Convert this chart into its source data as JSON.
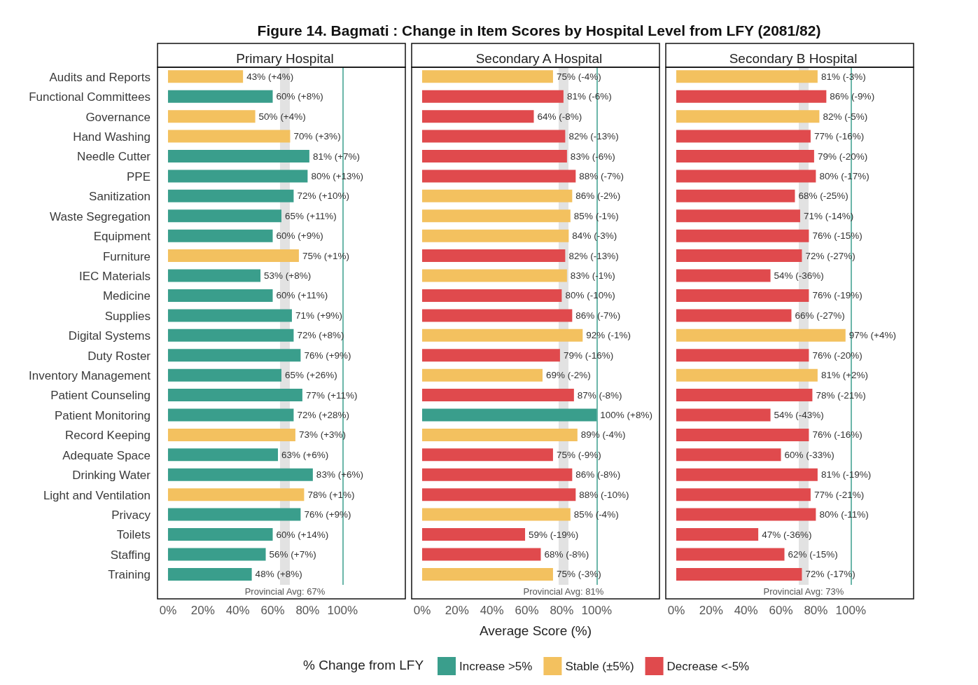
{
  "chart_data": [
    {
      "type": "bar",
      "orientation": "horizontal",
      "stacked": true,
      "title": "Figure 14. Bagmati : Change in Item Scores by Hospital Level from LFY (2081/82)",
      "subtitle": "Primary Hospital",
      "categories": [
        "Audits and Reports",
        "Functional Committees",
        "Governance",
        "Hand Washing",
        "Needle Cutter",
        "PPE",
        "Sanitization",
        "Waste Segregation",
        "Equipment",
        "Furniture",
        "IEC Materials",
        "Medicine",
        "Supplies",
        "Digital Systems",
        "Duty Roster",
        "Inventory Management",
        "Patient Counseling",
        "Patient Monitoring",
        "Record Keeping",
        "Adequate Space",
        "Drinking Water",
        "Light and Ventilation",
        "Privacy",
        "Toilets",
        "Staffing",
        "Training"
      ],
      "series": [
        {
          "color": "#3a9e8c",
          "values": [
            null,
            60,
            null,
            null,
            81,
            80,
            72,
            65,
            60,
            null,
            53,
            60,
            71,
            72,
            76,
            65,
            77,
            72,
            null,
            63,
            83,
            null,
            76,
            60,
            56,
            48
          ],
          "value_labels": [
            null,
            "60% (+8%)",
            null,
            null,
            "81% (+7%)",
            "80% (+13%)",
            "72% (+10%)",
            "65% (+11%)",
            "60% (+9%)",
            null,
            "53% (+8%)",
            "60% (+11%)",
            "71% (+9%)",
            "72% (+8%)",
            "76% (+9%)",
            "65% (+26%)",
            "77% (+11%)",
            "72% (+28%)",
            null,
            "63% (+6%)",
            "83% (+6%)",
            null,
            "76% (+9%)",
            "60% (+14%)",
            "56% (+7%)",
            "48% (+8%)"
          ]
        },
        {
          "color": "#f3c15f",
          "values": [
            43,
            null,
            50,
            70,
            null,
            null,
            null,
            null,
            null,
            75,
            null,
            null,
            null,
            null,
            null,
            null,
            null,
            null,
            73,
            null,
            null,
            78,
            null,
            null,
            null,
            null
          ],
          "value_labels": [
            "43% (+4%)",
            null,
            "50% (+4%)",
            "70% (+3%)",
            null,
            null,
            null,
            null,
            null,
            "75% (+1%)",
            null,
            null,
            null,
            null,
            null,
            null,
            null,
            null,
            "73% (+3%)",
            null,
            null,
            "78% (+1%)",
            null,
            null,
            null,
            null
          ]
        }
      ],
      "xlim": [
        -6,
        136
      ],
      "xticks": [
        {
          "value": 0,
          "label": "0%"
        },
        {
          "value": 20,
          "label": "20%"
        },
        {
          "value": 40,
          "label": "40%"
        },
        {
          "value": 60,
          "label": "60%"
        },
        {
          "value": 80,
          "label": "80%"
        },
        {
          "value": 100,
          "label": "100%"
        }
      ],
      "ref_lines": [
        {
          "axis": "x",
          "value": 67,
          "label": "Provincial Avg: 67%",
          "color": "#e2e2e2"
        },
        {
          "axis": "x",
          "value": 100,
          "color": "#3a9e8c"
        }
      ],
      "legend": false
    },
    {
      "type": "bar",
      "orientation": "horizontal",
      "stacked": true,
      "subtitle": "Secondary A Hospital",
      "xlabel": "Average Score (%)",
      "tick_labels": "x",
      "categories": [
        null,
        null,
        null,
        null,
        null,
        null,
        null,
        null,
        null,
        null,
        null,
        null,
        null,
        null,
        null,
        null,
        null,
        null,
        null,
        null,
        null,
        null,
        null,
        null,
        null,
        null
      ],
      "series": [
        {
          "color": "#3a9e8c",
          "values": [
            null,
            null,
            null,
            null,
            null,
            null,
            null,
            null,
            null,
            null,
            null,
            null,
            null,
            null,
            null,
            null,
            null,
            100,
            null,
            null,
            null,
            null,
            null,
            null,
            null,
            null
          ],
          "value_labels": [
            null,
            null,
            null,
            null,
            null,
            null,
            null,
            null,
            null,
            null,
            null,
            null,
            null,
            null,
            null,
            null,
            null,
            "100% (+8%)",
            null,
            null,
            null,
            null,
            null,
            null,
            null,
            null
          ]
        },
        {
          "color": "#f3c15f",
          "values": [
            75,
            null,
            null,
            null,
            null,
            null,
            86,
            85,
            84,
            null,
            83,
            null,
            null,
            92,
            null,
            69,
            null,
            null,
            89,
            null,
            null,
            null,
            85,
            null,
            null,
            75
          ],
          "value_labels": [
            "75% (-4%)",
            null,
            null,
            null,
            null,
            null,
            "86% (-2%)",
            "85% (-1%)",
            "84% (-3%)",
            null,
            "83% (-1%)",
            null,
            null,
            "92% (-1%)",
            null,
            "69% (-2%)",
            null,
            null,
            "89% (-4%)",
            null,
            null,
            null,
            "85% (-4%)",
            null,
            null,
            "75% (-3%)"
          ]
        },
        {
          "color": "#e04a4d",
          "values": [
            null,
            81,
            64,
            82,
            83,
            88,
            null,
            null,
            null,
            82,
            null,
            80,
            86,
            null,
            79,
            null,
            87,
            null,
            null,
            75,
            86,
            88,
            null,
            59,
            68,
            null
          ],
          "value_labels": [
            null,
            "81% (-6%)",
            "64% (-8%)",
            "82% (-13%)",
            "83% (-6%)",
            "88% (-7%)",
            null,
            null,
            null,
            "82% (-13%)",
            null,
            "80% (-10%)",
            "86% (-7%)",
            null,
            "79% (-16%)",
            null,
            "87% (-8%)",
            null,
            null,
            "75% (-9%)",
            "86% (-8%)",
            "88% (-10%)",
            null,
            "59% (-19%)",
            "68% (-8%)",
            null
          ]
        }
      ],
      "xlim": [
        -6,
        136
      ],
      "xticks": [
        {
          "value": 0,
          "label": "0%"
        },
        {
          "value": 20,
          "label": "20%"
        },
        {
          "value": 40,
          "label": "40%"
        },
        {
          "value": 60,
          "label": "60%"
        },
        {
          "value": 80,
          "label": "80%"
        },
        {
          "value": 100,
          "label": "100%"
        }
      ],
      "ref_lines": [
        {
          "axis": "x",
          "value": 81,
          "label": "Provincial Avg: 81%",
          "color": "#e2e2e2"
        },
        {
          "axis": "x",
          "value": 100,
          "color": "#3a9e8c"
        }
      ],
      "legend": false
    },
    {
      "type": "bar",
      "orientation": "horizontal",
      "stacked": true,
      "subtitle": "Secondary B Hospital",
      "tick_labels": "x",
      "legend_title": "% Change from LFY",
      "categories": [
        null,
        null,
        null,
        null,
        null,
        null,
        null,
        null,
        null,
        null,
        null,
        null,
        null,
        null,
        null,
        null,
        null,
        null,
        null,
        null,
        null,
        null,
        null,
        null,
        null,
        null
      ],
      "series": [
        {
          "name": "Increase >5%",
          "color": "#3a9e8c",
          "values": [
            null,
            null,
            null,
            null,
            null,
            null,
            null,
            null,
            null,
            null,
            null,
            null,
            null,
            null,
            null,
            null,
            null,
            null,
            null,
            null,
            null,
            null,
            null,
            null,
            null,
            null
          ]
        },
        {
          "name": "Stable (±5%)",
          "color": "#f3c15f",
          "values": [
            81,
            null,
            82,
            null,
            null,
            null,
            null,
            null,
            null,
            null,
            null,
            null,
            null,
            97,
            null,
            81,
            null,
            null,
            null,
            null,
            null,
            null,
            null,
            null,
            null,
            null
          ],
          "value_labels": [
            "81% (-3%)",
            null,
            "82% (-5%)",
            null,
            null,
            null,
            null,
            null,
            null,
            null,
            null,
            null,
            null,
            "97% (+4%)",
            null,
            "81% (+2%)",
            null,
            null,
            null,
            null,
            null,
            null,
            null,
            null,
            null,
            null
          ]
        },
        {
          "name": "Decrease <-5%",
          "color": "#e04a4d",
          "values": [
            null,
            86,
            null,
            77,
            79,
            80,
            68,
            71,
            76,
            72,
            54,
            76,
            66,
            null,
            76,
            null,
            78,
            54,
            76,
            60,
            81,
            77,
            80,
            47,
            62,
            72
          ],
          "value_labels": [
            null,
            "86% (-9%)",
            null,
            "77% (-16%)",
            "79% (-20%)",
            "80% (-17%)",
            "68% (-25%)",
            "71% (-14%)",
            "76% (-15%)",
            "72% (-27%)",
            "54% (-36%)",
            "76% (-19%)",
            "66% (-27%)",
            null,
            "76% (-20%)",
            null,
            "78% (-21%)",
            "54% (-43%)",
            "76% (-16%)",
            "60% (-33%)",
            "81% (-19%)",
            "77% (-21%)",
            "80% (-11%)",
            "47% (-36%)",
            "62% (-15%)",
            "72% (-17%)"
          ]
        }
      ],
      "xlim": [
        -6,
        136
      ],
      "xticks": [
        {
          "value": 0,
          "label": "0%"
        },
        {
          "value": 20,
          "label": "20%"
        },
        {
          "value": 40,
          "label": "40%"
        },
        {
          "value": 60,
          "label": "60%"
        },
        {
          "value": 80,
          "label": "80%"
        },
        {
          "value": 100,
          "label": "100%"
        }
      ],
      "ref_lines": [
        {
          "axis": "x",
          "value": 73,
          "label": "Provincial Avg: 73%",
          "color": "#e2e2e2"
        },
        {
          "axis": "x",
          "value": 100,
          "color": "#3a9e8c"
        }
      ],
      "legend": "bottom"
    }
  ]
}
